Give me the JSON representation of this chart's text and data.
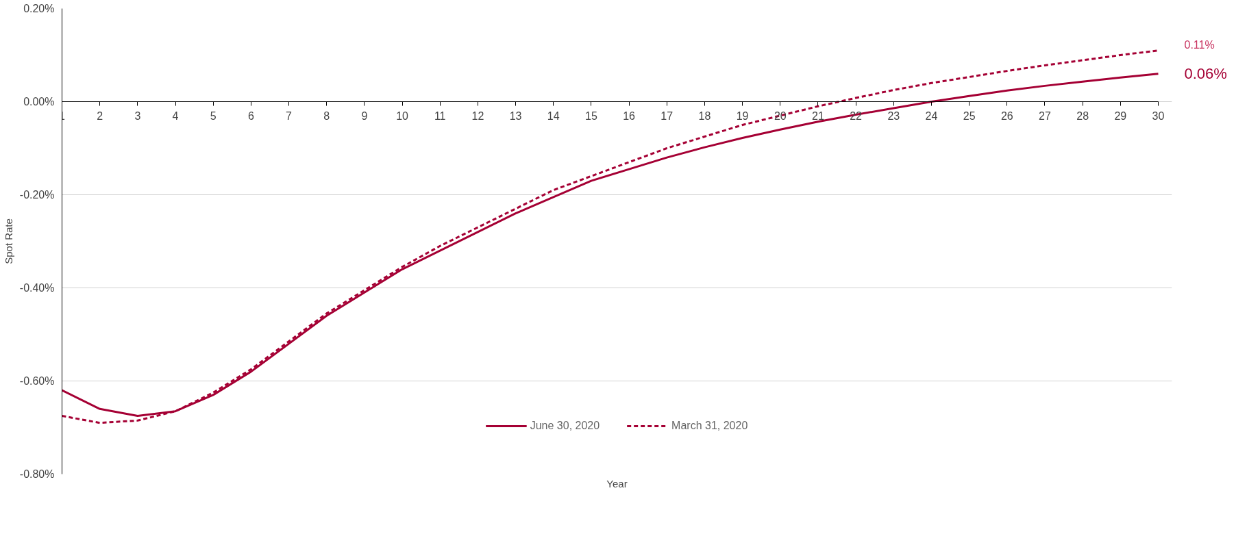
{
  "chart_data": {
    "type": "line",
    "xlabel": "Year",
    "ylabel": "Spot Rate",
    "x": [
      1,
      2,
      3,
      4,
      5,
      6,
      7,
      8,
      9,
      10,
      11,
      12,
      13,
      14,
      15,
      16,
      17,
      18,
      19,
      20,
      21,
      22,
      23,
      24,
      25,
      26,
      27,
      28,
      29,
      30
    ],
    "series": [
      {
        "name": "June 30, 2020",
        "color": "#a50034",
        "line_style": "solid",
        "values": [
          -0.62,
          -0.66,
          -0.675,
          -0.665,
          -0.63,
          -0.58,
          -0.52,
          -0.46,
          -0.41,
          -0.36,
          -0.32,
          -0.28,
          -0.24,
          -0.205,
          -0.17,
          -0.145,
          -0.12,
          -0.098,
          -0.078,
          -0.06,
          -0.043,
          -0.028,
          -0.014,
          0.0,
          0.012,
          0.024,
          0.034,
          0.043,
          0.052,
          0.06
        ]
      },
      {
        "name": "March 31, 2020",
        "color": "#a50034",
        "line_style": "dashed",
        "values": [
          -0.675,
          -0.69,
          -0.685,
          -0.665,
          -0.625,
          -0.575,
          -0.515,
          -0.455,
          -0.405,
          -0.355,
          -0.31,
          -0.27,
          -0.23,
          -0.19,
          -0.16,
          -0.13,
          -0.1,
          -0.075,
          -0.05,
          -0.03,
          -0.01,
          0.008,
          0.025,
          0.04,
          0.053,
          0.066,
          0.078,
          0.089,
          0.1,
          0.11
        ]
      }
    ],
    "annotations": [
      {
        "text": "0.06%",
        "x": 30,
        "y": 0.06
      },
      {
        "text": "0.11%",
        "x": 30,
        "y": 0.11
      }
    ],
    "xlim": [
      1,
      30
    ],
    "xticks": [
      1,
      2,
      3,
      4,
      5,
      6,
      7,
      8,
      9,
      10,
      11,
      12,
      13,
      14,
      15,
      16,
      17,
      18,
      19,
      20,
      21,
      22,
      23,
      24,
      25,
      26,
      27,
      28,
      29,
      30
    ],
    "ylim": [
      -0.8,
      0.2
    ],
    "yticks": [
      {
        "value": -0.8,
        "label": "-0.80%"
      },
      {
        "value": -0.6,
        "label": "-0.60%"
      },
      {
        "value": -0.4,
        "label": "-0.40%"
      },
      {
        "value": -0.2,
        "label": "-0.20%"
      },
      {
        "value": 0,
        "label": "0.00%"
      },
      {
        "value": 0.2,
        "label": "0.20%"
      }
    ],
    "grid": "y",
    "legend": "bottom",
    "marker": "none"
  }
}
